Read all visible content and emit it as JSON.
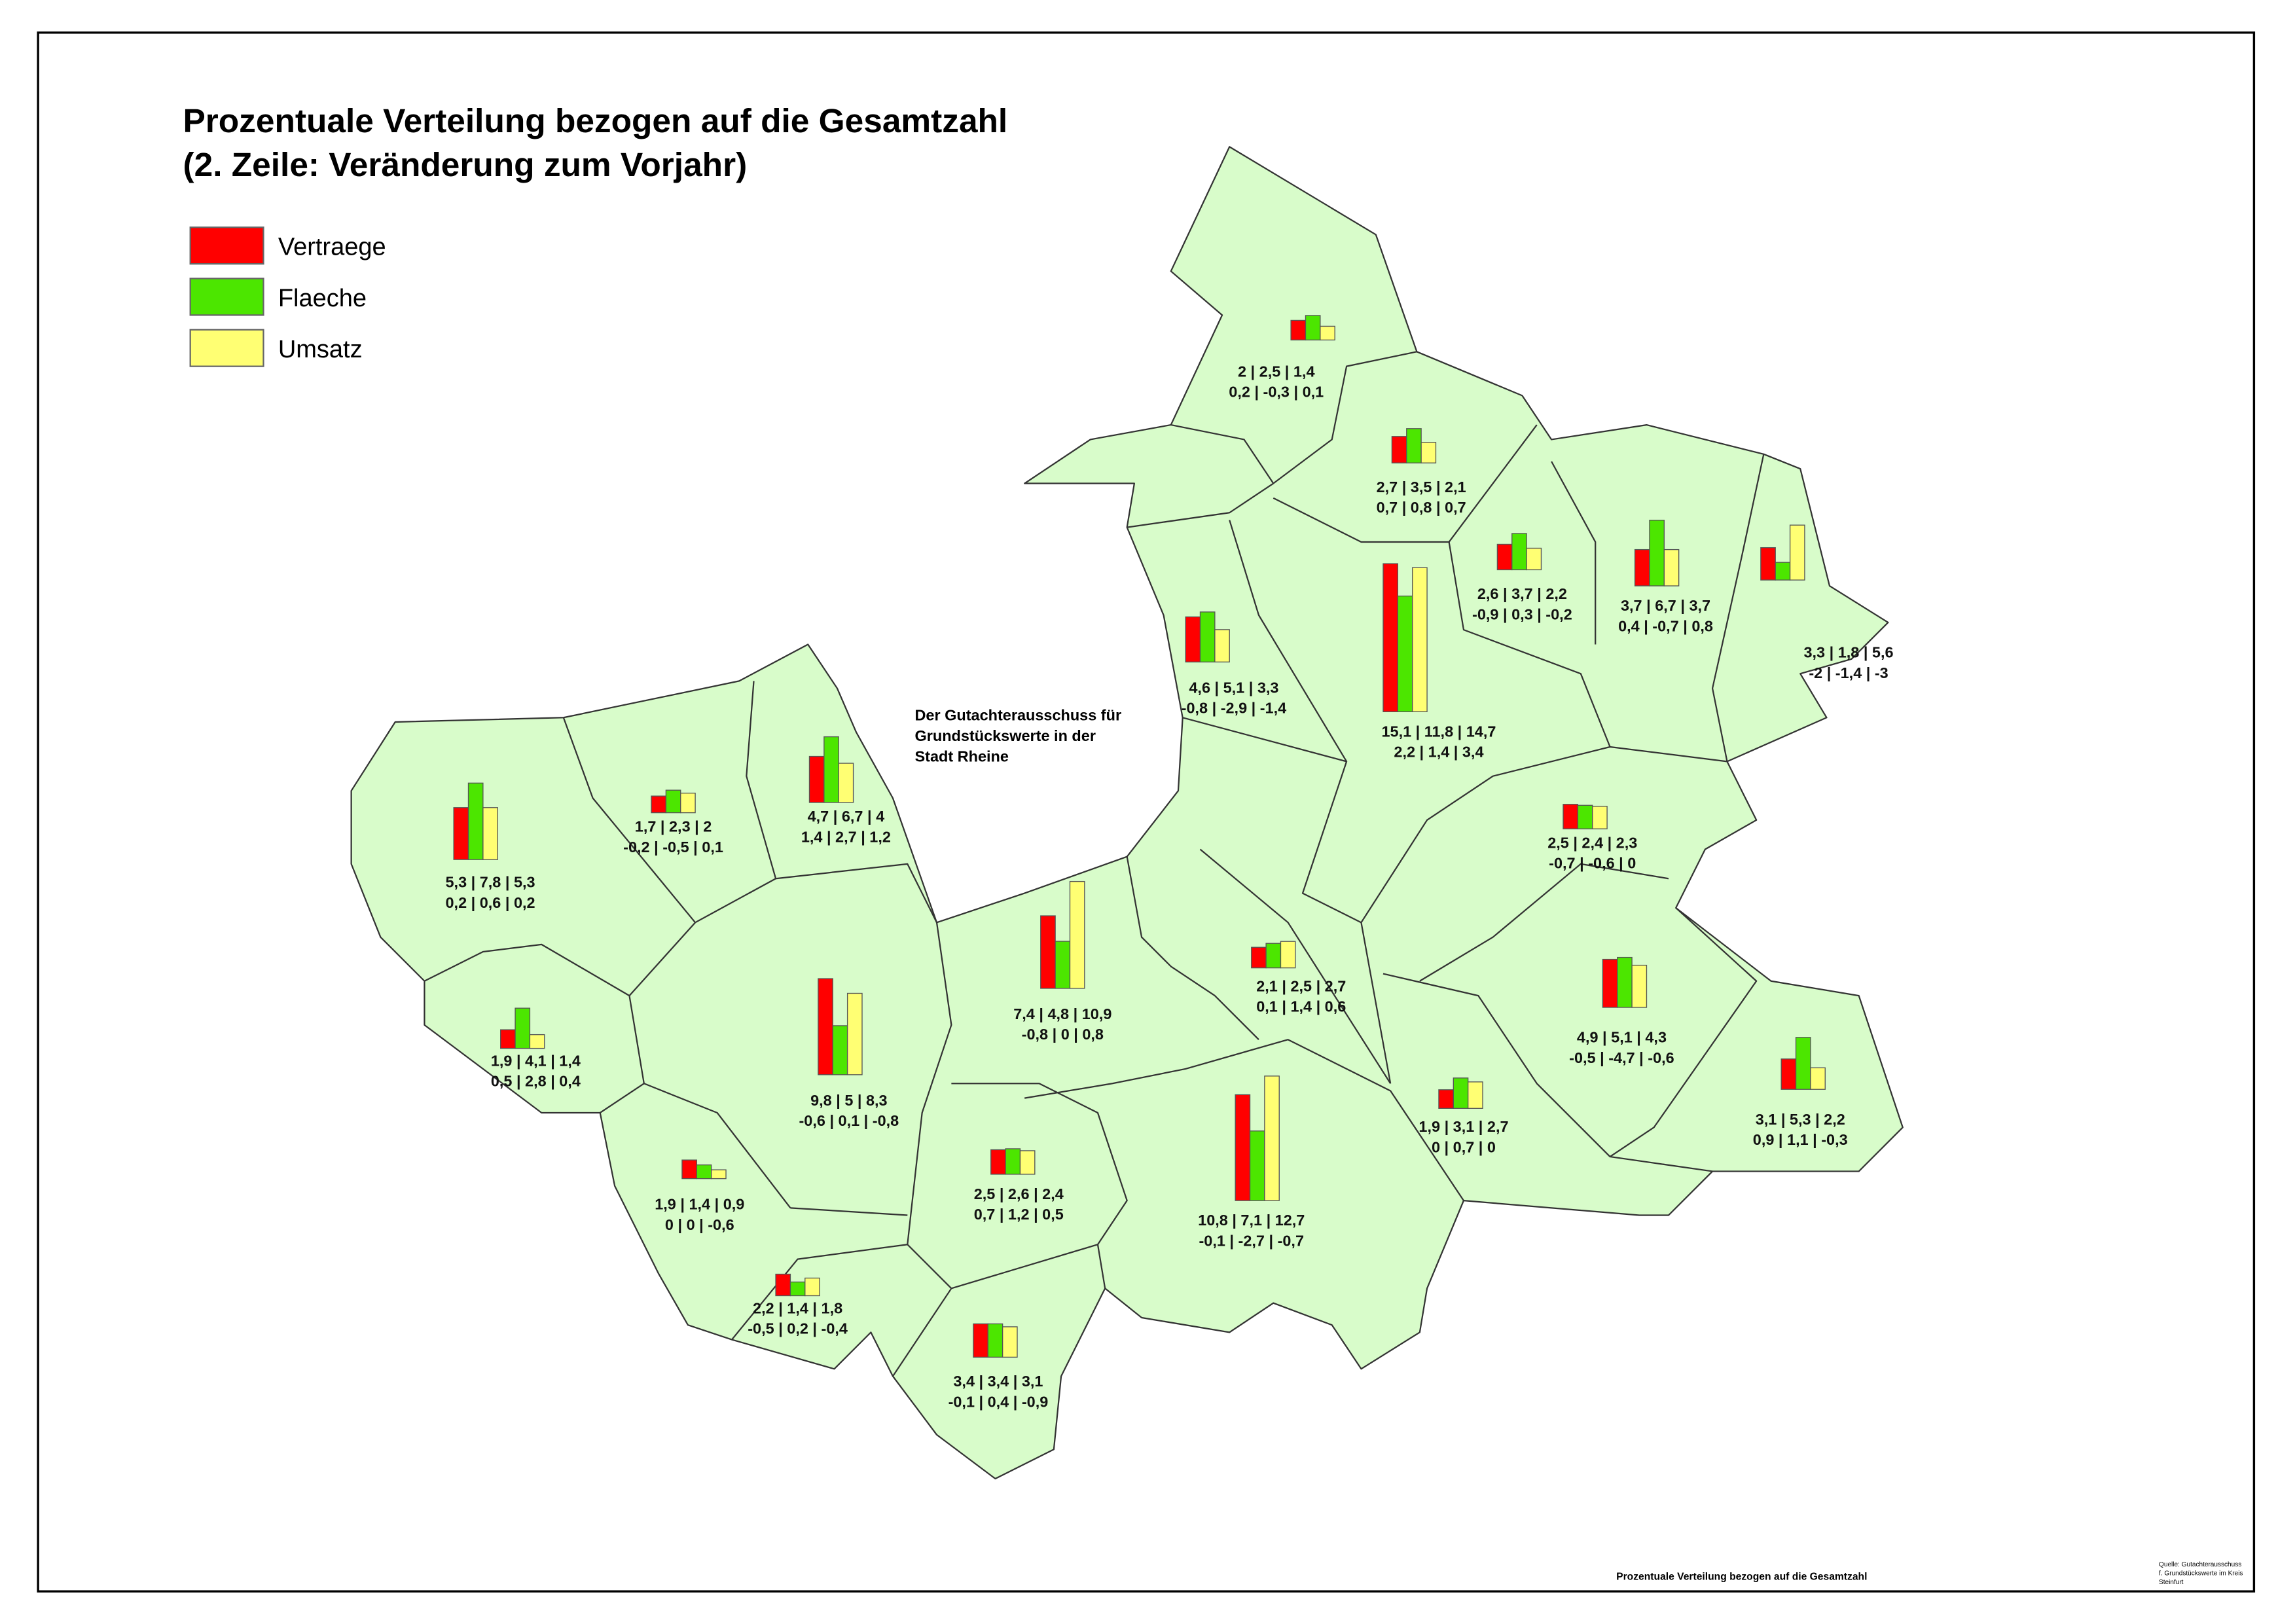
{
  "title": [
    "Prozentuale Verteilung bezogen auf die Gesamtzahl",
    "(2. Zeile: Veränderung zum Vorjahr)"
  ],
  "legend": [
    {
      "label": "Vertraege",
      "color": "#ff0000"
    },
    {
      "label": "Flaeche",
      "color": "#4ce600"
    },
    {
      "label": "Umsatz",
      "color": "#ffff73"
    }
  ],
  "annotation": [
    "Der Gutachterausschuss für",
    "Grundstückswerte in der",
    "Stadt Rheine"
  ],
  "footer": "Prozentuale Verteilung bezogen auf die Gesamtzahl",
  "source": [
    "Quelle: Gutachterausschuss",
    "f. Grundstückswerte im Kreis",
    "Steinfurt"
  ],
  "regions": [
    {
      "values": [
        2,
        2.5,
        1.4
      ],
      "label": "2 |  2,5 | 1,4",
      "change": "0,2 | -0,3 | 0,1"
    },
    {
      "values": [
        2.7,
        3.5,
        2.1
      ],
      "label": "2,7 |  3,5 | 2,1",
      "change": "0,7 | 0,8 | 0,7"
    },
    {
      "values": [
        2.6,
        3.7,
        2.2
      ],
      "label": "2,6 |  3,7 | 2,2",
      "change": "-0,9 | 0,3 | -0,2"
    },
    {
      "values": [
        3.7,
        6.7,
        3.7
      ],
      "label": "3,7 |  6,7 | 3,7",
      "change": "0,4 | -0,7 | 0,8"
    },
    {
      "values": [
        3.3,
        1.8,
        5.6
      ],
      "label": "3,3 |  1,8 | 5,6",
      "change": "-2 | -1,4 | -3"
    },
    {
      "values": [
        4.6,
        5.1,
        3.3
      ],
      "label": "4,6 |  5,1 | 3,3",
      "change": "-0,8 | -2,9 | -1,4"
    },
    {
      "values": [
        15.1,
        11.8,
        14.7
      ],
      "label": "15,1 |  11,8 | 14,7",
      "change": "2,2 | 1,4 | 3,4"
    },
    {
      "values": [
        5.3,
        7.8,
        5.3
      ],
      "label": "5,3 |  7,8 | 5,3",
      "change": "0,2 | 0,6 | 0,2"
    },
    {
      "values": [
        1.7,
        2.3,
        2
      ],
      "label": "1,7 |  2,3 | 2",
      "change": "-0,2 | -0,5 | 0,1"
    },
    {
      "values": [
        4.7,
        6.7,
        4
      ],
      "label": "4,7 |  6,7 | 4",
      "change": "1,4 | 2,7 | 1,2"
    },
    {
      "values": [
        2.5,
        2.4,
        2.3
      ],
      "label": "2,5 |  2,4 | 2,3",
      "change": "-0,7 | -0,6 | 0"
    },
    {
      "values": [
        7.4,
        4.8,
        10.9
      ],
      "label": "7,4 |  4,8 | 10,9",
      "change": "-0,8 | 0 | 0,8"
    },
    {
      "values": [
        2.1,
        2.5,
        2.7
      ],
      "label": "2,1 |  2,5 | 2,7",
      "change": "0,1 | 1,4 | 0,6"
    },
    {
      "values": [
        4.9,
        5.1,
        4.3
      ],
      "label": "4,9 |  5,1 | 4,3",
      "change": "-0,5 | -4,7 | -0,6"
    },
    {
      "values": [
        1.9,
        4.1,
        1.4
      ],
      "label": "1,9 |  4,1 | 1,4",
      "change": "0,5 | 2,8 | 0,4"
    },
    {
      "values": [
        9.8,
        5,
        8.3
      ],
      "label": "9,8 |  5 | 8,3",
      "change": "-0,6 | 0,1 | -0,8"
    },
    {
      "values": [
        1.9,
        3.1,
        2.7
      ],
      "label": "1,9 |  3,1 | 2,7",
      "change": "0 | 0,7 | 0"
    },
    {
      "values": [
        3.1,
        5.3,
        2.2
      ],
      "label": "3,1 |  5,3 | 2,2",
      "change": "0,9 | 1,1 | -0,3"
    },
    {
      "values": [
        10.8,
        7.1,
        12.7
      ],
      "label": "10,8 |  7,1 | 12,7",
      "change": "-0,1 | -2,7 | -0,7"
    },
    {
      "values": [
        1.9,
        1.4,
        0.9
      ],
      "label": "1,9 |  1,4 | 0,9",
      "change": "0 | 0 | -0,6"
    },
    {
      "values": [
        2.5,
        2.6,
        2.4
      ],
      "label": "2,5 |  2,6 | 2,4",
      "change": "0,7 | 1,2 | 0,5"
    },
    {
      "values": [
        2.2,
        1.4,
        1.8
      ],
      "label": "2,2 |  1,4 | 1,8",
      "change": "-0,5 | 0,2 | -0,4"
    },
    {
      "values": [
        3.4,
        3.4,
        3.1
      ],
      "label": "3,4 |  3,4 | 3,1",
      "change": "-0,1 | 0,4 | -0,9"
    }
  ]
}
